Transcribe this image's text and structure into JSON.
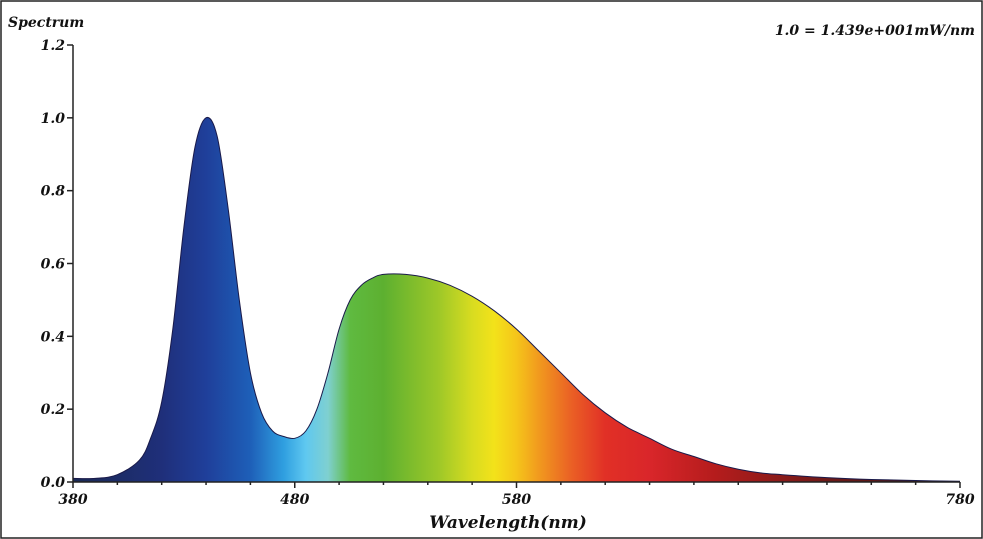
{
  "chart_data": {
    "type": "area",
    "title": "Spectrum",
    "annotation": "1.0 = 1.439e+001mW/nm",
    "xlabel": "Wavelength(nm)",
    "ylabel": "",
    "xlim": [
      380,
      780
    ],
    "ylim": [
      0,
      1.2
    ],
    "x_ticks": [
      380,
      480,
      580,
      780
    ],
    "x_tick_labels": [
      "380",
      "480",
      "580",
      "780"
    ],
    "y_ticks": [
      0.0,
      0.2,
      0.4,
      0.6,
      0.8,
      1.0,
      1.2
    ],
    "y_tick_labels": [
      "0.0",
      "0.2",
      "0.4",
      "0.6",
      "0.8",
      "1.0",
      "1.2"
    ],
    "grid": false,
    "fill": "visible-spectrum gradient",
    "series": [
      {
        "x": [
          380,
          390,
          400,
          410,
          415,
          420,
          425,
          430,
          435,
          440,
          445,
          450,
          455,
          460,
          465,
          470,
          475,
          480,
          485,
          490,
          495,
          500,
          505,
          510,
          515,
          520,
          530,
          540,
          550,
          560,
          570,
          580,
          590,
          600,
          610,
          620,
          630,
          640,
          650,
          660,
          670,
          680,
          690,
          700,
          720,
          740,
          760,
          780
        ],
        "y": [
          0.01,
          0.01,
          0.02,
          0.06,
          0.12,
          0.22,
          0.42,
          0.7,
          0.92,
          1.0,
          0.95,
          0.75,
          0.5,
          0.3,
          0.19,
          0.14,
          0.125,
          0.12,
          0.14,
          0.2,
          0.3,
          0.42,
          0.5,
          0.54,
          0.56,
          0.57,
          0.57,
          0.56,
          0.54,
          0.51,
          0.47,
          0.42,
          0.36,
          0.3,
          0.24,
          0.19,
          0.15,
          0.12,
          0.09,
          0.07,
          0.05,
          0.035,
          0.025,
          0.02,
          0.012,
          0.007,
          0.004,
          0.002
        ]
      }
    ]
  },
  "colors": {
    "axis": "#222222",
    "background": "#ffffff"
  }
}
